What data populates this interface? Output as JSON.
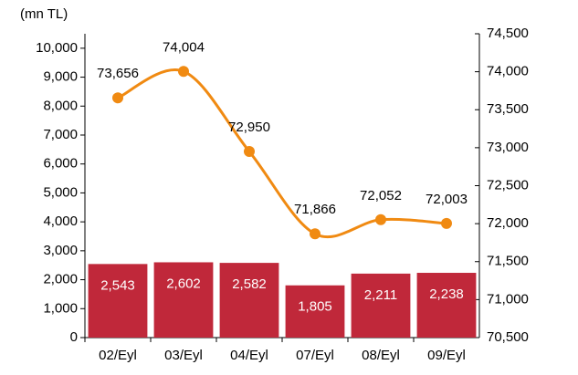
{
  "chart_data": {
    "type": "bar_line",
    "unit_label": "(mn TL)",
    "categories": [
      "02/Eyl",
      "03/Eyl",
      "04/Eyl",
      "07/Eyl",
      "08/Eyl",
      "09/Eyl"
    ],
    "series": [
      {
        "type": "bar",
        "color": "#c0283a",
        "values": [
          2543,
          2602,
          2582,
          1805,
          2211,
          2238
        ],
        "value_labels": [
          "2,543",
          "2,602",
          "2,582",
          "1,805",
          "2,211",
          "2,238"
        ]
      },
      {
        "type": "line",
        "axis": "y2",
        "color": "#f08a12",
        "values": [
          73656,
          74004,
          72950,
          71866,
          72052,
          72003
        ],
        "value_labels": [
          "73,656",
          "74,004",
          "72,950",
          "71,866",
          "72,052",
          "72,003"
        ]
      }
    ],
    "ylim": [
      0,
      10500
    ],
    "yticks": [
      0,
      {
        "value": 1000,
        "label": "1,000"
      },
      {
        "value": 2000,
        "label": "2,000"
      },
      {
        "value": 3000,
        "label": "3,000"
      },
      {
        "value": 4000,
        "label": "4,000"
      },
      {
        "value": 5000,
        "label": "5,000"
      },
      {
        "value": 6000,
        "label": "6,000"
      },
      {
        "value": 7000,
        "label": "7,000"
      },
      {
        "value": 8000,
        "label": "8,000"
      },
      {
        "value": 9000,
        "label": "9,000"
      },
      {
        "value": 10000,
        "label": "10,000"
      }
    ],
    "y2lim": [
      70500,
      74500
    ],
    "y2ticks": [
      {
        "value": 70500,
        "label": "70,500"
      },
      {
        "value": 71000,
        "label": "71,000"
      },
      {
        "value": 71500,
        "label": "71,500"
      },
      {
        "value": 72000,
        "label": "72,000"
      },
      {
        "value": 72500,
        "label": "72,500"
      },
      {
        "value": 73000,
        "label": "73,000"
      },
      {
        "value": 73500,
        "label": "73,500"
      },
      {
        "value": 74000,
        "label": "74,000"
      },
      {
        "value": 74500,
        "label": "74,500"
      }
    ]
  }
}
